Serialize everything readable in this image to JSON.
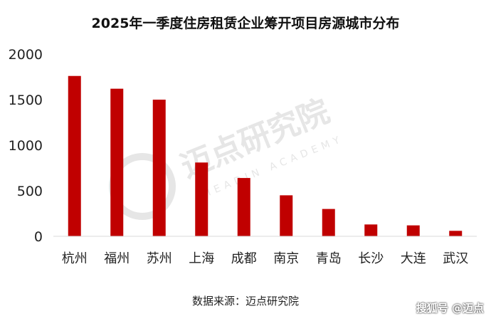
{
  "title": "2025年一季度住房租赁企业筹开项目房源城市分布",
  "source": "数据来源：迈点研究院",
  "footer": "搜狐号 @迈点",
  "watermark": {
    "text": "迈点研究院",
    "sub": "MEADIN ACADEMY"
  },
  "colors": {
    "bar": "#c00000",
    "axis": "#d9d9d9",
    "watermark": "#e6e6e6"
  },
  "chart_data": {
    "type": "bar",
    "categories": [
      "杭州",
      "福州",
      "苏州",
      "上海",
      "成都",
      "南京",
      "青岛",
      "长沙",
      "大连",
      "武汉"
    ],
    "values": [
      1760,
      1620,
      1500,
      810,
      640,
      450,
      300,
      130,
      120,
      60
    ],
    "yticks": [
      "0",
      "500",
      "1000",
      "1500",
      "2000"
    ],
    "ylim": [
      0,
      2000
    ],
    "grid": false,
    "legend": "none",
    "xlabel": "",
    "ylabel": ""
  }
}
